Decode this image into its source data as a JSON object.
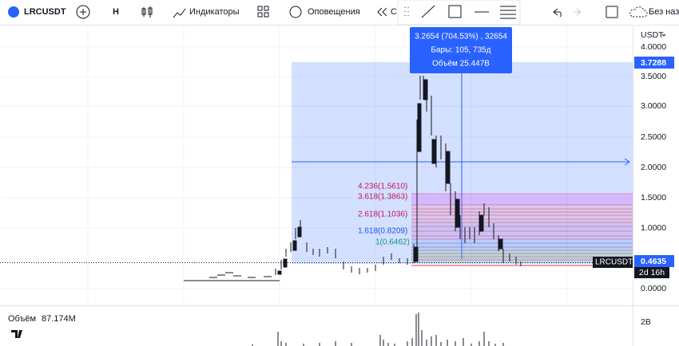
{
  "toolbar": {
    "symbol": "LRCUSDT",
    "interval": "H",
    "indicators": "Индикаторы",
    "alerts": "Оповещения",
    "replay": "С",
    "layout_name": "Без наз"
  },
  "tooltip": {
    "line1": "3.2654 (704.53%) , 32654",
    "line2": "Бары: 105, 735д",
    "line3": "Объём 25.447B"
  },
  "price_axis": {
    "currency": "USDT",
    "labels": [
      "4.0000",
      "3.5000",
      "3.0000",
      "2.5000",
      "2.0000",
      "1.5000",
      "1.0000",
      "0.0000"
    ],
    "range_top": "3.7288",
    "last_price": "0.4635",
    "symbol_tag": "LRCUSDT",
    "countdown": "2d 16h"
  },
  "fib_labels": [
    "4.236(1.5610)",
    "3.618(1.3863)",
    "2.618(1.1036)",
    "1.618(0.8209)",
    "1(0.6462)"
  ],
  "volume": {
    "label": "Объём",
    "value": "87.174M",
    "axis": "2B"
  }
}
